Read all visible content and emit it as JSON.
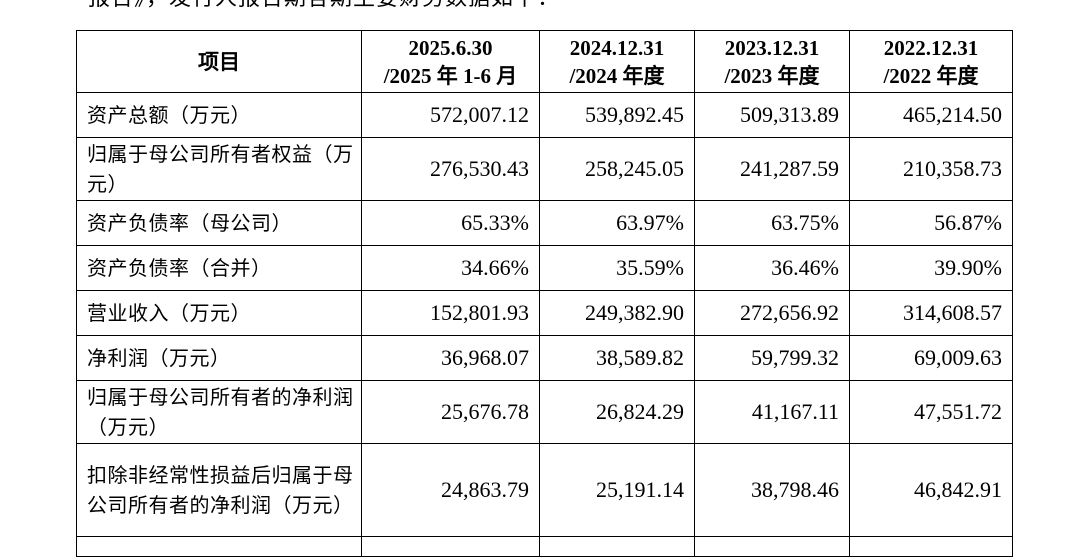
{
  "intro_text": "报告》，发行人报告期各期主要财务数据如下：",
  "table": {
    "header": {
      "item": "项目",
      "periods": [
        {
          "line1": "2025.6.30",
          "line2": "/2025 年 1-6 月"
        },
        {
          "line1": "2024.12.31",
          "line2": "/2024 年度"
        },
        {
          "line1": "2023.12.31",
          "line2": "/2023 年度"
        },
        {
          "line1": "2022.12.31",
          "line2": "/2022 年度"
        }
      ]
    },
    "rows": [
      {
        "label": "资产总额（万元）",
        "values": [
          "572,007.12",
          "539,892.45",
          "509,313.89",
          "465,214.50"
        ]
      },
      {
        "label": "归属于母公司所有者权益（万元）",
        "values": [
          "276,530.43",
          "258,245.05",
          "241,287.59",
          "210,358.73"
        ]
      },
      {
        "label": "资产负债率（母公司）",
        "values": [
          "65.33%",
          "63.97%",
          "63.75%",
          "56.87%"
        ]
      },
      {
        "label": "资产负债率（合并）",
        "values": [
          "34.66%",
          "35.59%",
          "36.46%",
          "39.90%"
        ]
      },
      {
        "label": "营业收入（万元）",
        "values": [
          "152,801.93",
          "249,382.90",
          "272,656.92",
          "314,608.57"
        ]
      },
      {
        "label": "净利润（万元）",
        "values": [
          "36,968.07",
          "38,589.82",
          "59,799.32",
          "69,009.63"
        ]
      },
      {
        "label": "归属于母公司所有者的净利润（万元）",
        "values": [
          "25,676.78",
          "26,824.29",
          "41,167.11",
          "47,551.72"
        ]
      },
      {
        "label": "扣除非经常性损益后归属于母公司所有者的净利润（万元）",
        "values": [
          "24,863.79",
          "25,191.14",
          "38,798.46",
          "46,842.91"
        ]
      }
    ]
  }
}
